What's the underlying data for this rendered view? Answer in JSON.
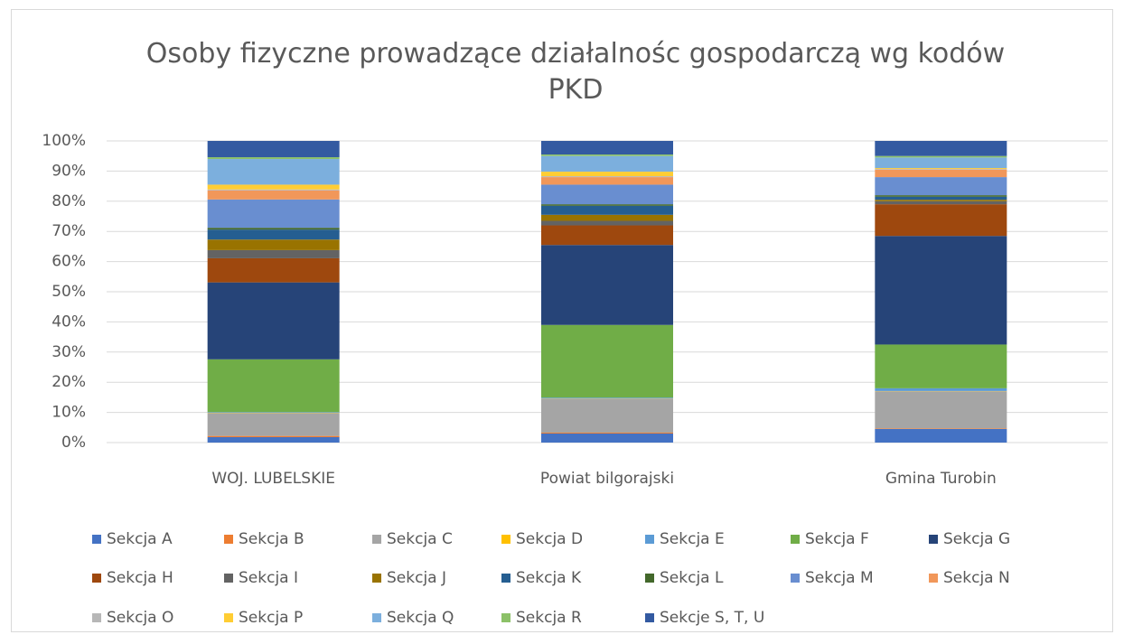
{
  "chart_data": {
    "type": "stacked_bar_100",
    "title": "Osoby fizyczne prowadzące działalnośc gospodarczą wg kodów PKD",
    "categories": [
      "WOJ. LUBELSKIE",
      "Powiat bilgorajski",
      "Gmina Turobin"
    ],
    "ylim": [
      0,
      100
    ],
    "yticks": [
      {
        "value": 0,
        "label": "0%"
      },
      {
        "value": 10,
        "label": "10%"
      },
      {
        "value": 20,
        "label": "20%"
      },
      {
        "value": 30,
        "label": "30%"
      },
      {
        "value": 40,
        "label": "40%"
      },
      {
        "value": 50,
        "label": "50%"
      },
      {
        "value": 60,
        "label": "60%"
      },
      {
        "value": 70,
        "label": "70%"
      },
      {
        "value": 80,
        "label": "80%"
      },
      {
        "value": 90,
        "label": "90%"
      },
      {
        "value": 100,
        "label": "100%"
      }
    ],
    "grid": true,
    "legend": "bottom",
    "series": [
      {
        "name": "Sekcja A",
        "color": "#4472c4",
        "values": [
          1.8,
          3,
          4.5
        ]
      },
      {
        "name": "Sekcja B",
        "color": "#ed7d31",
        "values": [
          0.4,
          0.3,
          0.2
        ]
      },
      {
        "name": "Sekcja C",
        "color": "#a5a5a5",
        "values": [
          7.6,
          11.2,
          12.3
        ]
      },
      {
        "name": "Sekcja D",
        "color": "#ffc000",
        "values": [
          0.1,
          0.1,
          0.1
        ]
      },
      {
        "name": "Sekcja E",
        "color": "#5b9bd5",
        "values": [
          0.2,
          0.3,
          0.9
        ]
      },
      {
        "name": "Sekcja F",
        "color": "#70ad47",
        "values": [
          17.5,
          24.1,
          14.5
        ]
      },
      {
        "name": "Sekcja G",
        "color": "#264478",
        "values": [
          25.5,
          26.5,
          36
        ]
      },
      {
        "name": "Sekcja H",
        "color": "#9e480e",
        "values": [
          8,
          6.5,
          10.5
        ]
      },
      {
        "name": "Sekcja I",
        "color": "#636363",
        "values": [
          2.7,
          1.5,
          1
        ]
      },
      {
        "name": "Sekcja J",
        "color": "#997300",
        "values": [
          3.5,
          2,
          0.5
        ]
      },
      {
        "name": "Sekcja K",
        "color": "#255e91",
        "values": [
          3.3,
          3,
          1
        ]
      },
      {
        "name": "Sekcja L",
        "color": "#43682b",
        "values": [
          0.6,
          0.5,
          0.5
        ]
      },
      {
        "name": "Sekcja M",
        "color": "#698ed0",
        "values": [
          9.4,
          6.5,
          6
        ]
      },
      {
        "name": "Sekcja N",
        "color": "#f1975a",
        "values": [
          3,
          2.5,
          2.5
        ]
      },
      {
        "name": "Sekcja O",
        "color": "#b7b7b7",
        "values": [
          0.3,
          0.3,
          0.2
        ]
      },
      {
        "name": "Sekcja P",
        "color": "#ffcd33",
        "values": [
          1.6,
          1.5,
          0.3
        ]
      },
      {
        "name": "Sekcja Q",
        "color": "#7cafdd",
        "values": [
          8.5,
          5.2,
          3.5
        ]
      },
      {
        "name": "Sekcja R",
        "color": "#8cc168",
        "values": [
          0.6,
          0.5,
          0.5
        ]
      },
      {
        "name": "Sekcje S, T, U",
        "color": "#335aa1",
        "values": [
          5.4,
          4.5,
          5
        ]
      }
    ]
  }
}
